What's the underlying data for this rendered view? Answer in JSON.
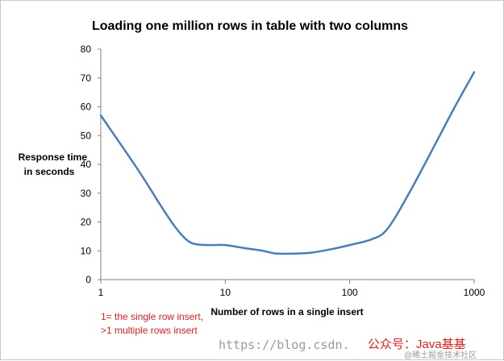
{
  "chart_data": {
    "type": "line",
    "title": "Loading one million rows in table with two columns",
    "xlabel": "Number of rows in a single insert",
    "ylabel": [
      "Response time",
      "in seconds"
    ],
    "xscale": "log",
    "xlim": [
      1,
      1000
    ],
    "ylim": [
      0,
      80
    ],
    "x_ticks": [
      1,
      10,
      100,
      1000
    ],
    "x_tick_labels": [
      "1",
      "10",
      "100",
      "1000"
    ],
    "y_ticks": [
      0,
      10,
      20,
      30,
      40,
      50,
      60,
      70,
      80
    ],
    "y_tick_labels": [
      "0",
      "10",
      "20",
      "30",
      "40",
      "50",
      "60",
      "70",
      "80"
    ],
    "grid": false,
    "legend": "none",
    "series": [
      {
        "color": "#4a7ebb",
        "x": [
          1,
          2,
          3,
          4,
          5,
          6,
          8,
          10,
          15,
          20,
          25,
          30,
          40,
          50,
          70,
          100,
          150,
          200,
          300,
          500,
          700,
          1000
        ],
        "y": [
          57,
          38,
          26,
          18,
          13.5,
          12.2,
          12,
          12,
          10.8,
          10,
          9.1,
          9,
          9.1,
          9.4,
          10.5,
          12,
          14,
          17.5,
          30,
          48,
          60,
          72
        ]
      }
    ],
    "annotations": [
      "1= the single row  insert,",
      ">1 multiple rows insert"
    ]
  },
  "watermark": {
    "url_text": "https://blog.csdn.",
    "cn_text": "公众号：Java基基",
    "small_text": "@稀土掘金技术社区"
  }
}
